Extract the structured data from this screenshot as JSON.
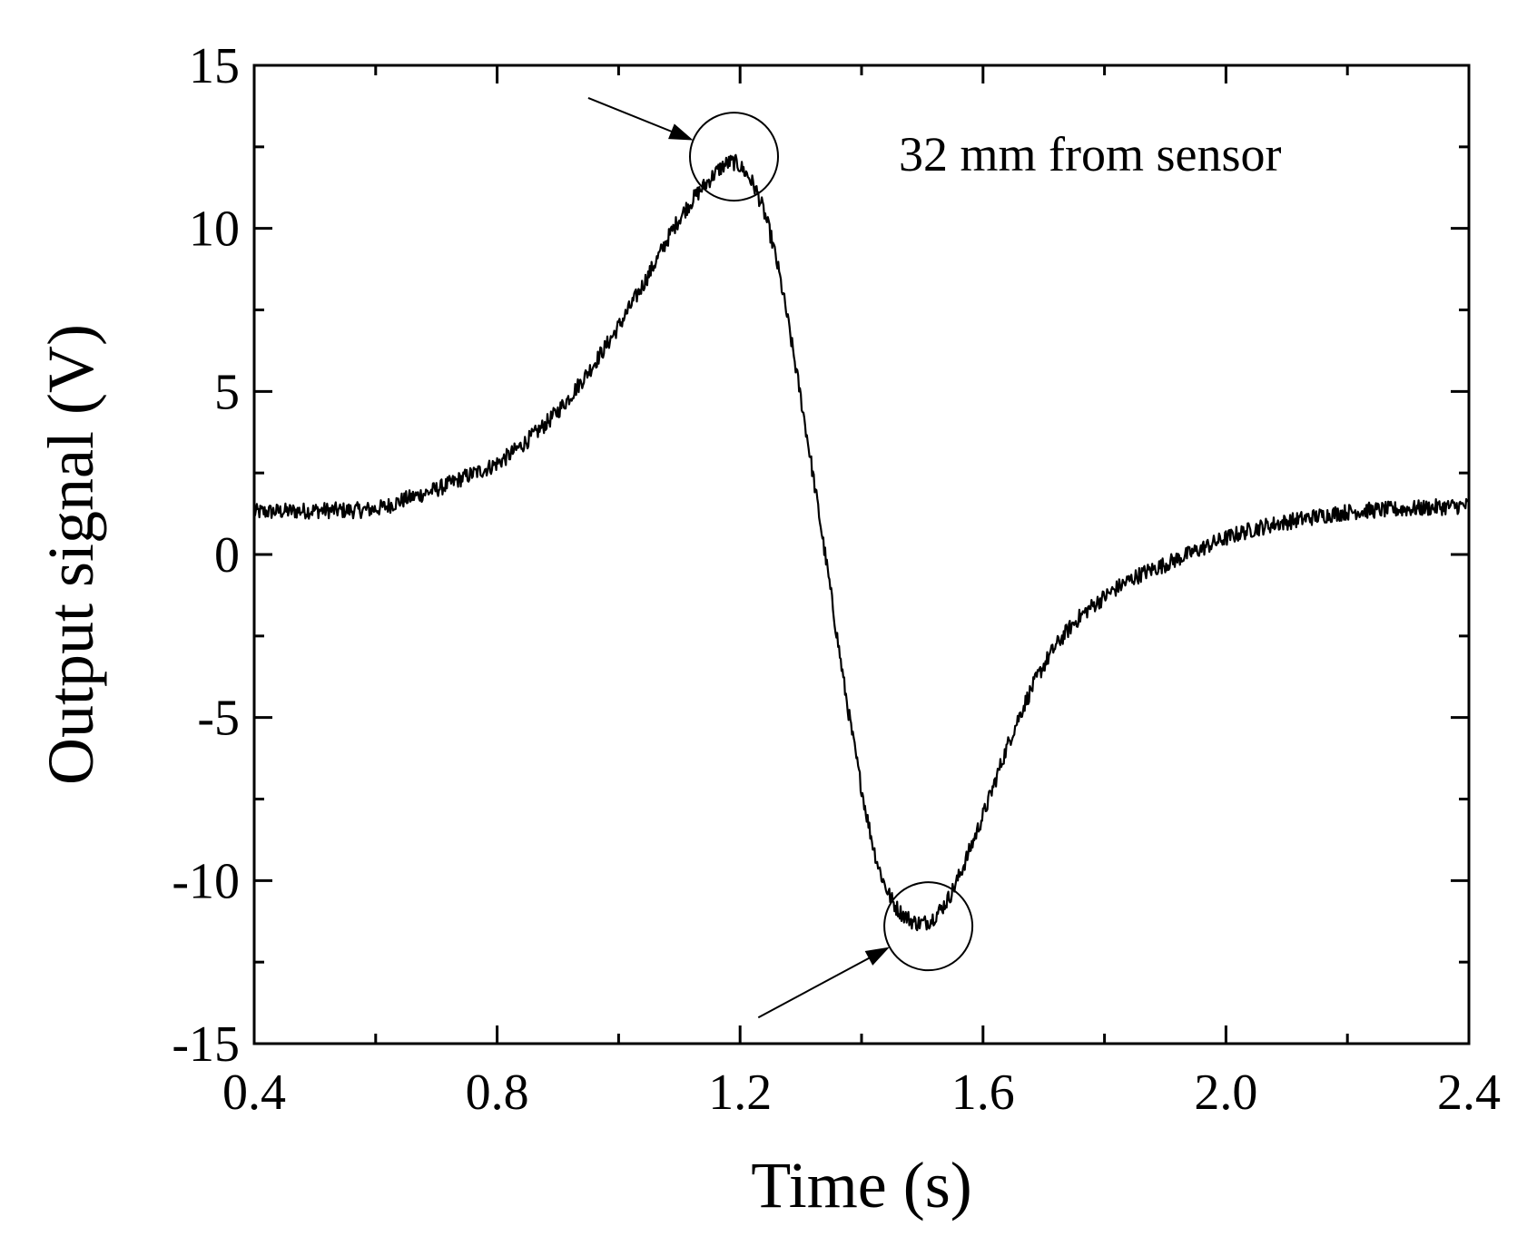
{
  "chart_data": {
    "type": "line",
    "title": "",
    "xlabel": "Time (s)",
    "ylabel": "Output signal (V)",
    "xlim": [
      0.4,
      2.4
    ],
    "ylim": [
      -15,
      15
    ],
    "xticks": [
      0.4,
      0.8,
      1.2,
      1.6,
      2.0,
      2.4
    ],
    "xtick_labels": [
      "0.4",
      "0.8",
      "1.2",
      "1.6",
      "2.0",
      "2.4"
    ],
    "xminor": [
      0.6,
      1.0,
      1.4,
      1.8,
      2.2
    ],
    "yticks": [
      -15,
      -10,
      -5,
      0,
      5,
      10,
      15
    ],
    "ytick_labels": [
      "-15",
      "-10",
      "-5",
      "0",
      "5",
      "10",
      "15"
    ],
    "yminor": [
      -12.5,
      -7.5,
      -2.5,
      2.5,
      7.5,
      12.5
    ],
    "grid": false,
    "annotation": "32 mm from sensor",
    "series": [
      {
        "name": "Output signal",
        "color": "#000000",
        "noise": 0.25,
        "x": [
          0.4,
          0.5,
          0.6,
          0.65,
          0.7,
          0.75,
          0.8,
          0.85,
          0.9,
          0.95,
          1.0,
          1.05,
          1.1,
          1.15,
          1.18,
          1.2,
          1.23,
          1.26,
          1.3,
          1.34,
          1.38,
          1.42,
          1.45,
          1.48,
          1.5,
          1.52,
          1.55,
          1.6,
          1.65,
          1.7,
          1.75,
          1.8,
          1.85,
          1.9,
          1.95,
          2.0,
          2.05,
          2.1,
          2.2,
          2.3,
          2.4
        ],
        "y": [
          1.3,
          1.35,
          1.4,
          1.7,
          2.0,
          2.4,
          2.8,
          3.5,
          4.4,
          5.6,
          7.0,
          8.6,
          10.3,
          11.5,
          12.0,
          11.9,
          11.0,
          9.0,
          4.8,
          0.0,
          -5.0,
          -9.0,
          -10.6,
          -11.2,
          -11.3,
          -11.1,
          -10.3,
          -8.0,
          -5.4,
          -3.4,
          -2.1,
          -1.3,
          -0.7,
          -0.3,
          0.1,
          0.5,
          0.8,
          1.0,
          1.3,
          1.4,
          1.5
        ]
      }
    ],
    "markers": [
      {
        "label": "peak",
        "x": 1.19,
        "y": 12.2,
        "radius_v": 1.35,
        "arrow_from": [
          0.95,
          14.0
        ]
      },
      {
        "label": "trough",
        "x": 1.51,
        "y": -11.4,
        "radius_v": 1.35,
        "arrow_from": [
          1.23,
          -14.2
        ]
      }
    ]
  }
}
